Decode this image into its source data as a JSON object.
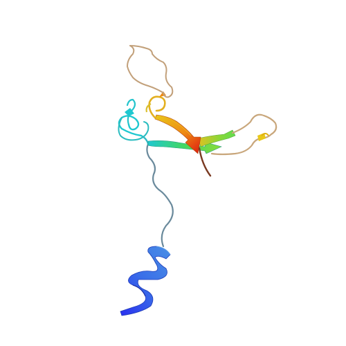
{
  "viewer": {
    "subject": "protein-ribbon-structure",
    "background_color": "#ffffff",
    "coloring": "rainbow-n-to-c",
    "palette": {
      "n_terminus": "#2233ee",
      "helix": "#3a78e6",
      "linker": "#6a8a9c",
      "cyan": "#1fc8d0",
      "green": "#66dd44",
      "yellow": "#e8c81a",
      "orange": "#ee8a14",
      "red": "#dd1a10",
      "loop_tan": "#c2a07a",
      "c_terminus": "#7a3a22"
    }
  }
}
